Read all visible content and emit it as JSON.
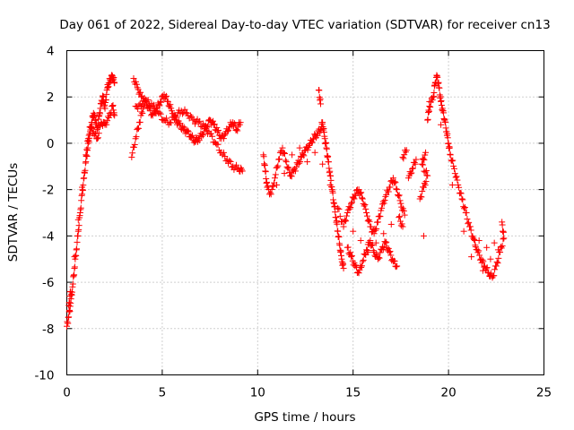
{
  "chart_data": {
    "type": "scatter",
    "title": "Day 061 of 2022, Sidereal Day-to-day VTEC variation (SDTVAR) for receiver cn13",
    "xlabel": "GPS time / hours",
    "ylabel": "SDTVAR / TECUs",
    "xlim": [
      0,
      25
    ],
    "ylim": [
      -10,
      4
    ],
    "xticks": [
      0,
      5,
      10,
      15,
      20,
      25
    ],
    "yticks": [
      -10,
      -8,
      -6,
      -4,
      -2,
      0,
      2,
      4
    ],
    "xtick_labels": [
      "0",
      "5",
      "10",
      "15",
      "20",
      "25"
    ],
    "ytick_labels": [
      "-10",
      "-8",
      "-6",
      "-4",
      "-2",
      "0",
      "2",
      "4"
    ],
    "grid": true,
    "marker": "+",
    "color": "#ff0000",
    "series": [
      {
        "name": "cn13",
        "points": [
          [
            0.0,
            -7.9
          ],
          [
            0.1,
            -7.5
          ],
          [
            0.2,
            -6.9
          ],
          [
            0.3,
            -6.2
          ],
          [
            0.4,
            -5.4
          ],
          [
            0.5,
            -4.6
          ],
          [
            0.6,
            -3.8
          ],
          [
            0.7,
            -3.0
          ],
          [
            0.8,
            -2.2
          ],
          [
            0.9,
            -1.5
          ],
          [
            1.0,
            -0.8
          ],
          [
            1.1,
            -0.2
          ],
          [
            1.2,
            0.4
          ],
          [
            1.3,
            0.9
          ],
          [
            1.4,
            1.3
          ],
          [
            1.5,
            1.0
          ],
          [
            1.6,
            0.6
          ],
          [
            1.7,
            1.2
          ],
          [
            1.8,
            1.7
          ],
          [
            1.9,
            2.0
          ],
          [
            2.0,
            1.5
          ],
          [
            2.1,
            2.3
          ],
          [
            2.2,
            2.6
          ],
          [
            2.3,
            2.8
          ],
          [
            2.4,
            2.9
          ],
          [
            2.5,
            2.6
          ],
          [
            0.1,
            -7.0
          ],
          [
            0.2,
            -6.4
          ],
          [
            0.4,
            -4.9
          ],
          [
            0.6,
            -3.3
          ],
          [
            0.8,
            -1.9
          ],
          [
            1.0,
            -0.5
          ],
          [
            1.2,
            0.7
          ],
          [
            1.4,
            0.5
          ],
          [
            1.6,
            0.2
          ],
          [
            1.8,
            0.9
          ],
          [
            2.0,
            0.8
          ],
          [
            2.2,
            1.1
          ],
          [
            2.4,
            1.6
          ],
          [
            2.5,
            1.2
          ],
          [
            3.4,
            -0.6
          ],
          [
            3.6,
            0.2
          ],
          [
            3.8,
            0.9
          ],
          [
            4.0,
            1.5
          ],
          [
            3.5,
            2.8
          ],
          [
            3.7,
            2.4
          ],
          [
            3.9,
            2.0
          ],
          [
            4.1,
            1.8
          ],
          [
            4.3,
            1.5
          ],
          [
            4.5,
            1.2
          ],
          [
            4.7,
            1.5
          ],
          [
            4.9,
            1.8
          ],
          [
            5.1,
            2.1
          ],
          [
            5.3,
            1.8
          ],
          [
            5.5,
            1.4
          ],
          [
            5.7,
            1.0
          ],
          [
            5.9,
            0.8
          ],
          [
            6.1,
            0.6
          ],
          [
            6.3,
            0.5
          ],
          [
            6.5,
            0.3
          ],
          [
            6.7,
            0.1
          ],
          [
            6.9,
            0.2
          ],
          [
            7.1,
            0.4
          ],
          [
            7.3,
            0.7
          ],
          [
            7.5,
            1.0
          ],
          [
            7.7,
            0.8
          ],
          [
            7.9,
            0.5
          ],
          [
            8.1,
            0.2
          ],
          [
            8.3,
            0.4
          ],
          [
            8.5,
            0.7
          ],
          [
            8.7,
            0.9
          ],
          [
            8.9,
            0.6
          ],
          [
            9.1,
            0.9
          ],
          [
            3.6,
            1.6
          ],
          [
            3.9,
            1.6
          ],
          [
            4.2,
            1.8
          ],
          [
            4.5,
            1.6
          ],
          [
            4.8,
            1.3
          ],
          [
            5.1,
            1.0
          ],
          [
            5.4,
            0.9
          ],
          [
            5.7,
            1.2
          ],
          [
            6.0,
            1.4
          ],
          [
            6.3,
            1.3
          ],
          [
            6.6,
            1.0
          ],
          [
            6.9,
            0.9
          ],
          [
            7.2,
            0.7
          ],
          [
            7.5,
            0.4
          ],
          [
            7.8,
            0.0
          ],
          [
            8.1,
            -0.4
          ],
          [
            8.4,
            -0.7
          ],
          [
            8.7,
            -1.0
          ],
          [
            9.0,
            -1.1
          ],
          [
            9.2,
            -1.2
          ],
          [
            10.3,
            -0.5
          ],
          [
            10.4,
            -1.2
          ],
          [
            10.5,
            -1.9
          ],
          [
            10.7,
            -2.2
          ],
          [
            10.9,
            -1.5
          ],
          [
            11.1,
            -0.7
          ],
          [
            11.3,
            -0.2
          ],
          [
            11.5,
            -0.8
          ],
          [
            11.7,
            -1.4
          ],
          [
            11.9,
            -1.2
          ],
          [
            12.1,
            -0.9
          ],
          [
            12.3,
            -0.6
          ],
          [
            12.5,
            -0.3
          ],
          [
            12.7,
            -0.1
          ],
          [
            12.9,
            0.2
          ],
          [
            13.1,
            0.4
          ],
          [
            13.3,
            0.6
          ],
          [
            13.4,
            0.9
          ],
          [
            13.5,
            0.3
          ],
          [
            13.6,
            -0.2
          ],
          [
            13.7,
            -0.8
          ],
          [
            13.8,
            -1.4
          ],
          [
            13.9,
            -2.0
          ],
          [
            14.0,
            -2.6
          ],
          [
            14.1,
            -3.2
          ],
          [
            14.2,
            -3.8
          ],
          [
            14.3,
            -4.4
          ],
          [
            14.4,
            -5.0
          ],
          [
            14.5,
            -5.4
          ],
          [
            13.2,
            2.3
          ],
          [
            13.3,
            1.7
          ],
          [
            11.0,
            -1.8
          ],
          [
            11.4,
            -1.3
          ],
          [
            11.8,
            -0.5
          ],
          [
            12.2,
            -0.2
          ],
          [
            12.6,
            -0.8
          ],
          [
            13.0,
            -0.4
          ],
          [
            13.4,
            -0.9
          ],
          [
            13.8,
            -1.8
          ],
          [
            14.2,
            -2.8
          ],
          [
            14.5,
            -3.6
          ],
          [
            14.7,
            -3.0
          ],
          [
            14.9,
            -2.6
          ],
          [
            15.1,
            -2.2
          ],
          [
            15.3,
            -2.0
          ],
          [
            15.5,
            -2.4
          ],
          [
            15.7,
            -3.0
          ],
          [
            15.9,
            -3.6
          ],
          [
            16.1,
            -3.9
          ],
          [
            16.3,
            -3.4
          ],
          [
            16.5,
            -2.8
          ],
          [
            16.7,
            -2.3
          ],
          [
            16.9,
            -1.9
          ],
          [
            17.1,
            -1.5
          ],
          [
            17.3,
            -2.0
          ],
          [
            17.5,
            -2.6
          ],
          [
            17.7,
            -3.1
          ],
          [
            14.7,
            -4.5
          ],
          [
            14.9,
            -4.9
          ],
          [
            15.1,
            -5.3
          ],
          [
            15.3,
            -5.6
          ],
          [
            15.5,
            -5.1
          ],
          [
            15.7,
            -4.6
          ],
          [
            15.9,
            -4.2
          ],
          [
            16.1,
            -4.7
          ],
          [
            16.3,
            -5.0
          ],
          [
            16.5,
            -4.6
          ],
          [
            16.7,
            -4.3
          ],
          [
            16.9,
            -4.7
          ],
          [
            17.1,
            -5.1
          ],
          [
            17.3,
            -5.3
          ],
          [
            15.0,
            -3.8
          ],
          [
            15.4,
            -4.2
          ],
          [
            15.8,
            -4.7
          ],
          [
            16.2,
            -4.3
          ],
          [
            16.6,
            -3.9
          ],
          [
            17.0,
            -3.5
          ],
          [
            17.4,
            -3.2
          ],
          [
            17.6,
            -3.6
          ],
          [
            17.9,
            -1.5
          ],
          [
            18.1,
            -1.1
          ],
          [
            18.3,
            -0.7
          ],
          [
            17.6,
            -0.6
          ],
          [
            17.8,
            -0.3
          ],
          [
            18.5,
            -2.4
          ],
          [
            18.7,
            -1.9
          ],
          [
            18.9,
            -1.4
          ],
          [
            18.6,
            -0.9
          ],
          [
            18.8,
            -0.4
          ],
          [
            18.7,
            -4.0
          ],
          [
            18.9,
            1.0
          ],
          [
            19.0,
            1.6
          ],
          [
            19.2,
            2.0
          ],
          [
            19.3,
            2.6
          ],
          [
            19.4,
            2.9
          ],
          [
            19.5,
            2.4
          ],
          [
            19.6,
            1.8
          ],
          [
            19.7,
            1.4
          ],
          [
            19.8,
            1.0
          ],
          [
            19.9,
            0.5
          ],
          [
            20.0,
            0.0
          ],
          [
            20.1,
            -0.5
          ],
          [
            20.3,
            -1.1
          ],
          [
            20.5,
            -1.8
          ],
          [
            20.7,
            -2.4
          ],
          [
            20.9,
            -3.0
          ],
          [
            21.1,
            -3.6
          ],
          [
            21.3,
            -4.1
          ],
          [
            21.5,
            -4.6
          ],
          [
            21.7,
            -5.0
          ],
          [
            21.9,
            -5.3
          ],
          [
            22.1,
            -5.6
          ],
          [
            22.3,
            -5.8
          ],
          [
            22.5,
            -5.3
          ],
          [
            22.7,
            -4.7
          ],
          [
            22.9,
            -4.1
          ],
          [
            22.8,
            -3.4
          ],
          [
            19.0,
            1.8
          ],
          [
            19.6,
            0.8
          ],
          [
            20.2,
            -1.8
          ],
          [
            20.8,
            -3.8
          ],
          [
            21.4,
            -4.4
          ],
          [
            22.0,
            -4.5
          ],
          [
            22.4,
            -4.3
          ],
          [
            21.2,
            -4.9
          ],
          [
            21.8,
            -5.5
          ],
          [
            22.2,
            -5.0
          ],
          [
            22.6,
            -4.6
          ],
          [
            21.6,
            -4.2
          ]
        ]
      }
    ]
  }
}
